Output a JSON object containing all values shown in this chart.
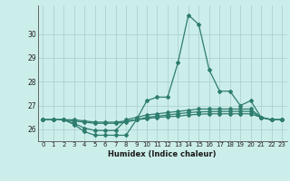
{
  "xlabel": "Humidex (Indice chaleur)",
  "x": [
    0,
    1,
    2,
    3,
    4,
    5,
    6,
    7,
    8,
    9,
    10,
    11,
    12,
    13,
    14,
    15,
    16,
    17,
    18,
    19,
    20,
    21,
    22,
    23
  ],
  "line1": [
    26.4,
    26.4,
    26.4,
    26.2,
    25.9,
    25.75,
    25.75,
    25.75,
    25.75,
    26.4,
    27.2,
    27.35,
    27.35,
    28.8,
    30.8,
    30.4,
    28.5,
    27.6,
    27.6,
    27.0,
    27.2,
    26.5,
    26.4,
    26.4
  ],
  "line2": [
    26.4,
    26.4,
    26.4,
    26.25,
    26.05,
    25.95,
    25.95,
    25.95,
    26.4,
    26.5,
    26.6,
    26.65,
    26.7,
    26.75,
    26.8,
    26.85,
    26.85,
    26.85,
    26.85,
    26.85,
    26.85,
    26.5,
    26.4,
    26.4
  ],
  "line3": [
    26.4,
    26.4,
    26.4,
    26.35,
    26.3,
    26.25,
    26.25,
    26.25,
    26.3,
    26.4,
    26.5,
    26.55,
    26.6,
    26.65,
    26.7,
    26.73,
    26.74,
    26.75,
    26.75,
    26.75,
    26.75,
    26.5,
    26.4,
    26.4
  ],
  "line4": [
    26.4,
    26.4,
    26.4,
    26.4,
    26.35,
    26.3,
    26.3,
    26.3,
    26.35,
    26.4,
    26.45,
    26.5,
    26.53,
    26.55,
    26.6,
    26.63,
    26.65,
    26.65,
    26.65,
    26.65,
    26.65,
    26.5,
    26.4,
    26.4
  ],
  "ylim": [
    25.5,
    31.2
  ],
  "yticks": [
    26,
    27,
    28,
    29,
    30
  ],
  "line_color": "#2e7d6e",
  "bg_color": "#cceeea",
  "grid_color": "#aaccc8"
}
